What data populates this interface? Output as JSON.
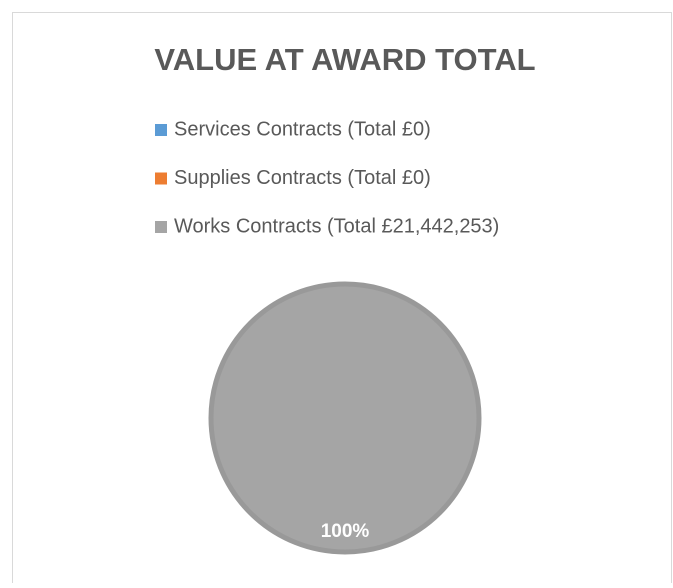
{
  "chart_data": {
    "type": "pie",
    "title": "VALUE AT AWARD TOTAL",
    "categories": [
      "Services Contracts (Total £0)",
      "Supplies Contracts (Total £0)",
      "Works Contracts (Total £21,442,253)"
    ],
    "values": [
      0,
      0,
      100
    ],
    "value_labels": [
      null,
      null,
      "100%"
    ],
    "colors": [
      "#5b9bd5",
      "#ed7d31",
      "#a5a5a5"
    ]
  }
}
